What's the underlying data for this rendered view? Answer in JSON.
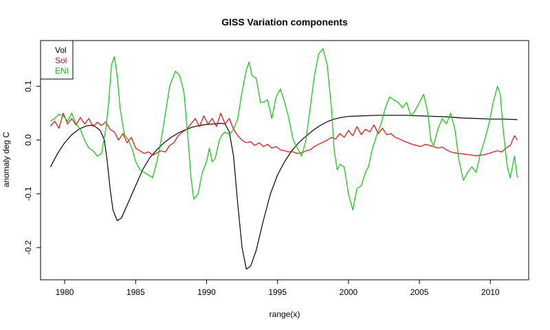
{
  "chart_data": {
    "type": "line",
    "title": "GISS Variation components",
    "xlabel": "range(x)",
    "ylabel": "anomaly deg C",
    "xlim": [
      1978.3,
      2012.7
    ],
    "ylim": [
      -0.26,
      0.185
    ],
    "x_ticks": [
      1980,
      1985,
      1990,
      1995,
      2000,
      2005,
      2010
    ],
    "y_ticks": [
      -0.2,
      -0.1,
      0.0,
      0.1
    ],
    "y_tick_labels": [
      "-0.2",
      "-0.1",
      "0.0",
      "0.1"
    ],
    "grid": false,
    "legend": {
      "placement": "top-left"
    },
    "series": [
      {
        "name": "Vol",
        "color": "#000000",
        "points": [
          [
            1979.0,
            -0.05
          ],
          [
            1979.5,
            -0.025
          ],
          [
            1980.0,
            -0.005
          ],
          [
            1980.5,
            0.01
          ],
          [
            1981.0,
            0.02
          ],
          [
            1981.5,
            0.026
          ],
          [
            1982.0,
            0.028
          ],
          [
            1982.5,
            0.018
          ],
          [
            1982.8,
            0.0
          ],
          [
            1983.0,
            -0.04
          ],
          [
            1983.2,
            -0.09
          ],
          [
            1983.4,
            -0.13
          ],
          [
            1983.7,
            -0.15
          ],
          [
            1984.0,
            -0.145
          ],
          [
            1984.5,
            -0.115
          ],
          [
            1985.0,
            -0.085
          ],
          [
            1985.5,
            -0.055
          ],
          [
            1986.0,
            -0.033
          ],
          [
            1986.5,
            -0.018
          ],
          [
            1987.0,
            -0.005
          ],
          [
            1987.5,
            0.005
          ],
          [
            1988.0,
            0.013
          ],
          [
            1988.5,
            0.019
          ],
          [
            1989.0,
            0.024
          ],
          [
            1989.5,
            0.027
          ],
          [
            1990.0,
            0.029
          ],
          [
            1990.5,
            0.03
          ],
          [
            1991.0,
            0.031
          ],
          [
            1991.3,
            0.03
          ],
          [
            1991.6,
            0.015
          ],
          [
            1991.9,
            -0.03
          ],
          [
            1992.2,
            -0.12
          ],
          [
            1992.5,
            -0.2
          ],
          [
            1992.8,
            -0.24
          ],
          [
            1993.1,
            -0.235
          ],
          [
            1993.5,
            -0.205
          ],
          [
            1994.0,
            -0.15
          ],
          [
            1994.5,
            -0.1
          ],
          [
            1995.0,
            -0.065
          ],
          [
            1995.5,
            -0.04
          ],
          [
            1996.0,
            -0.02
          ],
          [
            1996.5,
            -0.005
          ],
          [
            1997.0,
            0.007
          ],
          [
            1997.5,
            0.018
          ],
          [
            1998.0,
            0.027
          ],
          [
            1998.5,
            0.034
          ],
          [
            1999.0,
            0.039
          ],
          [
            1999.5,
            0.042
          ],
          [
            2000.0,
            0.044
          ],
          [
            2001.0,
            0.045
          ],
          [
            2002.0,
            0.046
          ],
          [
            2003.0,
            0.046
          ],
          [
            2004.0,
            0.046
          ],
          [
            2005.0,
            0.045
          ],
          [
            2006.0,
            0.044
          ],
          [
            2007.0,
            0.043
          ],
          [
            2008.0,
            0.041
          ],
          [
            2009.0,
            0.04
          ],
          [
            2010.0,
            0.039
          ],
          [
            2011.0,
            0.039
          ],
          [
            2011.9,
            0.038
          ]
        ]
      },
      {
        "name": "Sol",
        "color": "#ff0000",
        "points": [
          [
            1979.0,
            0.026
          ],
          [
            1979.3,
            0.035
          ],
          [
            1979.6,
            0.022
          ],
          [
            1979.9,
            0.05
          ],
          [
            1980.2,
            0.03
          ],
          [
            1980.5,
            0.04
          ],
          [
            1980.8,
            0.028
          ],
          [
            1981.1,
            0.042
          ],
          [
            1981.4,
            0.03
          ],
          [
            1981.7,
            0.04
          ],
          [
            1982.0,
            0.025
          ],
          [
            1982.3,
            0.033
          ],
          [
            1982.6,
            0.027
          ],
          [
            1982.9,
            0.034
          ],
          [
            1983.2,
            0.02
          ],
          [
            1983.5,
            0.015
          ],
          [
            1983.8,
            0.0
          ],
          [
            1984.1,
            0.012
          ],
          [
            1984.4,
            -0.005
          ],
          [
            1984.7,
            0.005
          ],
          [
            1985.0,
            -0.015
          ],
          [
            1985.3,
            -0.02
          ],
          [
            1985.6,
            -0.025
          ],
          [
            1985.9,
            -0.022
          ],
          [
            1986.2,
            -0.028
          ],
          [
            1986.5,
            -0.024
          ],
          [
            1986.8,
            -0.02
          ],
          [
            1987.1,
            -0.022
          ],
          [
            1987.4,
            -0.01
          ],
          [
            1987.7,
            -0.005
          ],
          [
            1988.0,
            0.008
          ],
          [
            1988.3,
            0.015
          ],
          [
            1988.6,
            0.02
          ],
          [
            1988.9,
            0.03
          ],
          [
            1989.2,
            0.04
          ],
          [
            1989.5,
            0.025
          ],
          [
            1989.8,
            0.045
          ],
          [
            1990.1,
            0.03
          ],
          [
            1990.4,
            0.04
          ],
          [
            1990.7,
            0.025
          ],
          [
            1991.0,
            0.05
          ],
          [
            1991.3,
            0.03
          ],
          [
            1991.6,
            0.04
          ],
          [
            1991.9,
            0.02
          ],
          [
            1992.2,
            0.008
          ],
          [
            1992.5,
            0.0
          ],
          [
            1992.8,
            -0.005
          ],
          [
            1993.1,
            -0.003
          ],
          [
            1993.4,
            -0.01
          ],
          [
            1993.7,
            -0.005
          ],
          [
            1994.0,
            -0.012
          ],
          [
            1994.3,
            -0.008
          ],
          [
            1994.6,
            -0.015
          ],
          [
            1994.9,
            -0.012
          ],
          [
            1995.2,
            -0.018
          ],
          [
            1995.5,
            -0.02
          ],
          [
            1995.8,
            -0.022
          ],
          [
            1996.1,
            -0.022
          ],
          [
            1996.4,
            -0.025
          ],
          [
            1996.7,
            -0.024
          ],
          [
            1997.0,
            -0.02
          ],
          [
            1997.3,
            -0.018
          ],
          [
            1997.6,
            -0.012
          ],
          [
            1997.9,
            -0.008
          ],
          [
            1998.2,
            -0.004
          ],
          [
            1998.5,
            0.0
          ],
          [
            1998.8,
            0.005
          ],
          [
            1999.1,
            0.002
          ],
          [
            1999.4,
            0.012
          ],
          [
            1999.7,
            0.005
          ],
          [
            2000.0,
            0.018
          ],
          [
            2000.3,
            0.008
          ],
          [
            2000.6,
            0.025
          ],
          [
            2000.9,
            0.01
          ],
          [
            2001.2,
            0.02
          ],
          [
            2001.5,
            0.015
          ],
          [
            2001.8,
            0.028
          ],
          [
            2002.1,
            0.012
          ],
          [
            2002.4,
            0.022
          ],
          [
            2002.7,
            0.01
          ],
          [
            2003.0,
            0.012
          ],
          [
            2003.3,
            0.005
          ],
          [
            2003.6,
            0.002
          ],
          [
            2003.9,
            -0.002
          ],
          [
            2004.2,
            -0.005
          ],
          [
            2004.5,
            -0.008
          ],
          [
            2004.8,
            -0.01
          ],
          [
            2005.1,
            -0.012
          ],
          [
            2005.4,
            -0.008
          ],
          [
            2005.7,
            -0.01
          ],
          [
            2006.0,
            -0.012
          ],
          [
            2006.3,
            -0.015
          ],
          [
            2006.6,
            -0.013
          ],
          [
            2006.9,
            -0.018
          ],
          [
            2007.2,
            -0.022
          ],
          [
            2007.5,
            -0.024
          ],
          [
            2007.8,
            -0.025
          ],
          [
            2008.1,
            -0.026
          ],
          [
            2008.4,
            -0.027
          ],
          [
            2008.7,
            -0.028
          ],
          [
            2009.0,
            -0.029
          ],
          [
            2009.3,
            -0.028
          ],
          [
            2009.6,
            -0.027
          ],
          [
            2009.9,
            -0.025
          ],
          [
            2010.2,
            -0.022
          ],
          [
            2010.5,
            -0.02
          ],
          [
            2010.8,
            -0.022
          ],
          [
            2011.1,
            -0.015
          ],
          [
            2011.4,
            -0.01
          ],
          [
            2011.7,
            0.008
          ],
          [
            2011.9,
            0.0
          ]
        ]
      },
      {
        "name": "ENI",
        "color": "#00cc00",
        "points": [
          [
            1979.0,
            0.035
          ],
          [
            1979.3,
            0.04
          ],
          [
            1979.6,
            0.048
          ],
          [
            1979.9,
            0.045
          ],
          [
            1980.2,
            0.035
          ],
          [
            1980.5,
            0.05
          ],
          [
            1980.8,
            0.03
          ],
          [
            1981.1,
            0.02
          ],
          [
            1981.4,
            0.0
          ],
          [
            1981.7,
            -0.015
          ],
          [
            1982.0,
            -0.02
          ],
          [
            1982.3,
            -0.03
          ],
          [
            1982.6,
            -0.025
          ],
          [
            1982.9,
            0.02
          ],
          [
            1983.1,
            0.07
          ],
          [
            1983.3,
            0.14
          ],
          [
            1983.5,
            0.155
          ],
          [
            1983.7,
            0.12
          ],
          [
            1983.9,
            0.06
          ],
          [
            1984.2,
            0.01
          ],
          [
            1984.5,
            0.0
          ],
          [
            1984.8,
            -0.02
          ],
          [
            1985.0,
            -0.04
          ],
          [
            1985.3,
            -0.055
          ],
          [
            1985.6,
            -0.06
          ],
          [
            1985.9,
            -0.065
          ],
          [
            1986.2,
            -0.07
          ],
          [
            1986.5,
            -0.04
          ],
          [
            1986.8,
            0.0
          ],
          [
            1987.1,
            0.05
          ],
          [
            1987.4,
            0.1
          ],
          [
            1987.8,
            0.128
          ],
          [
            1988.1,
            0.12
          ],
          [
            1988.4,
            0.09
          ],
          [
            1988.7,
            0.0
          ],
          [
            1988.9,
            -0.07
          ],
          [
            1989.1,
            -0.11
          ],
          [
            1989.4,
            -0.1
          ],
          [
            1989.7,
            -0.06
          ],
          [
            1990.0,
            -0.04
          ],
          [
            1990.2,
            -0.015
          ],
          [
            1990.4,
            -0.04
          ],
          [
            1990.6,
            -0.035
          ],
          [
            1990.9,
            0.0
          ],
          [
            1991.1,
            0.01
          ],
          [
            1991.3,
            0.015
          ],
          [
            1991.6,
            0.01
          ],
          [
            1991.9,
            0.02
          ],
          [
            1992.2,
            0.04
          ],
          [
            1992.5,
            0.09
          ],
          [
            1992.8,
            0.13
          ],
          [
            1993.0,
            0.145
          ],
          [
            1993.2,
            0.12
          ],
          [
            1993.5,
            0.115
          ],
          [
            1993.8,
            0.07
          ],
          [
            1994.0,
            0.07
          ],
          [
            1994.3,
            0.075
          ],
          [
            1994.6,
            0.04
          ],
          [
            1994.9,
            0.08
          ],
          [
            1995.2,
            0.095
          ],
          [
            1995.5,
            0.07
          ],
          [
            1995.8,
            0.04
          ],
          [
            1996.1,
            0.0
          ],
          [
            1996.4,
            -0.015
          ],
          [
            1996.7,
            -0.03
          ],
          [
            1997.0,
            0.0
          ],
          [
            1997.3,
            0.06
          ],
          [
            1997.6,
            0.12
          ],
          [
            1997.9,
            0.16
          ],
          [
            1998.2,
            0.17
          ],
          [
            1998.5,
            0.14
          ],
          [
            1998.8,
            0.06
          ],
          [
            1999.0,
            -0.02
          ],
          [
            1999.2,
            -0.055
          ],
          [
            1999.4,
            -0.045
          ],
          [
            1999.7,
            -0.05
          ],
          [
            2000.0,
            -0.1
          ],
          [
            2000.3,
            -0.13
          ],
          [
            2000.6,
            -0.09
          ],
          [
            2000.9,
            -0.085
          ],
          [
            2001.2,
            -0.06
          ],
          [
            2001.4,
            -0.05
          ],
          [
            2001.7,
            -0.015
          ],
          [
            2002.0,
            0.01
          ],
          [
            2002.3,
            0.03
          ],
          [
            2002.6,
            0.06
          ],
          [
            2002.9,
            0.08
          ],
          [
            2003.2,
            0.075
          ],
          [
            2003.5,
            0.07
          ],
          [
            2003.8,
            0.06
          ],
          [
            2004.1,
            0.07
          ],
          [
            2004.4,
            0.045
          ],
          [
            2004.7,
            0.055
          ],
          [
            2005.0,
            0.07
          ],
          [
            2005.3,
            0.085
          ],
          [
            2005.6,
            0.05
          ],
          [
            2005.8,
            0.0
          ],
          [
            2006.0,
            -0.01
          ],
          [
            2006.3,
            0.02
          ],
          [
            2006.6,
            0.04
          ],
          [
            2006.9,
            0.03
          ],
          [
            2007.2,
            0.05
          ],
          [
            2007.5,
            0.02
          ],
          [
            2007.8,
            -0.04
          ],
          [
            2008.1,
            -0.075
          ],
          [
            2008.4,
            -0.06
          ],
          [
            2008.7,
            -0.05
          ],
          [
            2009.0,
            -0.06
          ],
          [
            2009.3,
            -0.025
          ],
          [
            2009.6,
            0.0
          ],
          [
            2009.9,
            0.03
          ],
          [
            2010.2,
            0.07
          ],
          [
            2010.5,
            0.1
          ],
          [
            2010.7,
            0.085
          ],
          [
            2010.9,
            0.02
          ],
          [
            2011.2,
            -0.05
          ],
          [
            2011.4,
            -0.07
          ],
          [
            2011.7,
            -0.03
          ],
          [
            2011.9,
            -0.07
          ]
        ]
      }
    ]
  }
}
